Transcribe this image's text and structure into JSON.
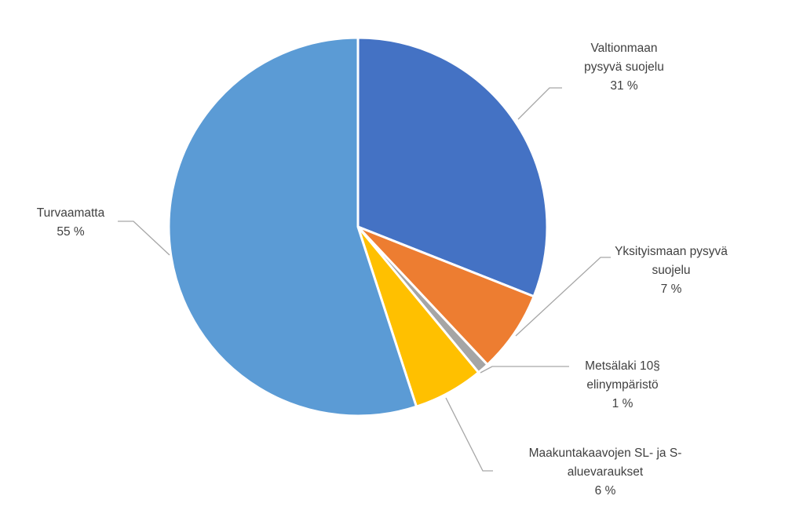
{
  "chart_data": {
    "type": "pie",
    "title": "",
    "slices": [
      {
        "lines": [
          "Valtionmaan",
          "pysyvä suojelu"
        ],
        "value_label": "31 %",
        "value": 31,
        "color": "#4472C4"
      },
      {
        "lines": [
          "Yksityismaan pysyvä",
          "suojelu"
        ],
        "value_label": "7 %",
        "value": 7,
        "color": "#ED7D31"
      },
      {
        "lines": [
          "Metsälaki 10§",
          "elinympäristö"
        ],
        "value_label": "1 %",
        "value": 1,
        "color": "#A5A5A5"
      },
      {
        "lines": [
          "Maakuntakaavojen SL- ja S-",
          "aluevaraukset"
        ],
        "value_label": "6 %",
        "value": 6,
        "color": "#FFC000"
      },
      {
        "lines": [
          "Turvaamatta"
        ],
        "value_label": "55 %",
        "value": 55,
        "color": "#5B9BD5"
      }
    ],
    "leader_line_color": "#A6A6A6",
    "slice_border_color": "#FFFFFF"
  }
}
